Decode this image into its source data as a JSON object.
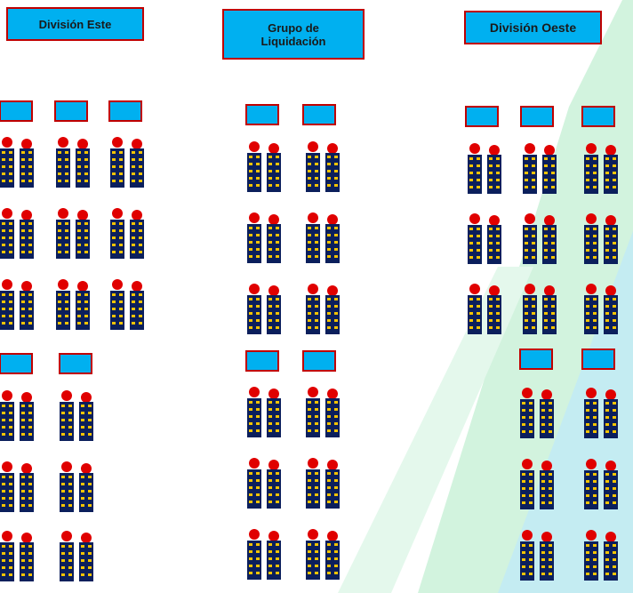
{
  "headers": {
    "east": "División Este",
    "settlement": "Grupo de Liquidación",
    "west": "División Oeste"
  }
}
